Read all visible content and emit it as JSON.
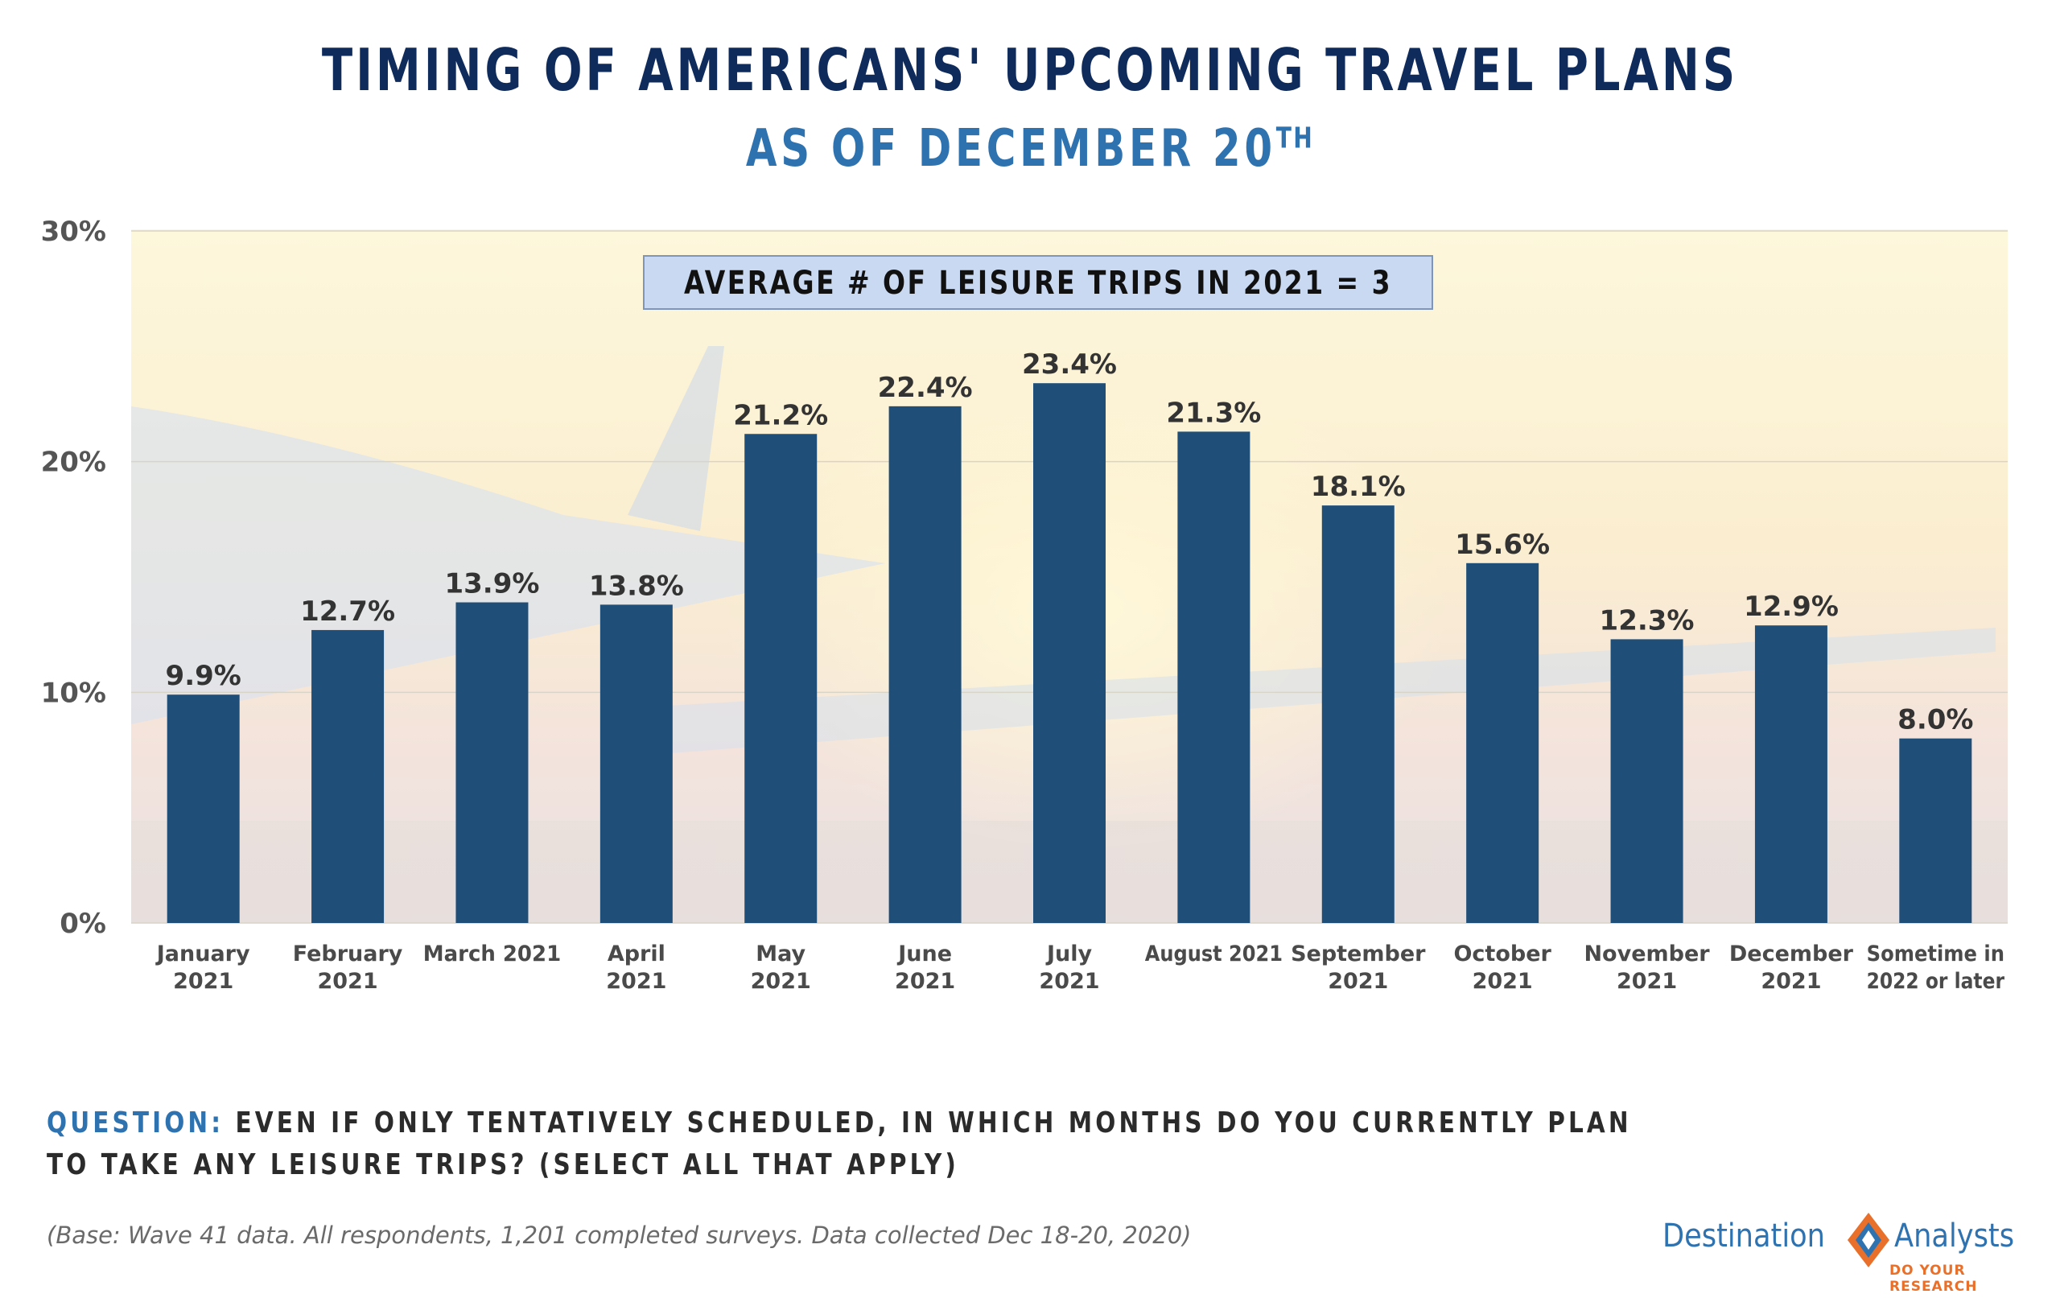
{
  "header": {
    "title": "TIMING OF AMERICANS' UPCOMING TRAVEL PLANS",
    "subtitle_main": "AS OF DECEMBER 20",
    "subtitle_sup": "TH"
  },
  "callout": {
    "text": "AVERAGE # OF LEISURE TRIPS IN 2021 = 3"
  },
  "question": {
    "label": "QUESTION:",
    "text": "EVEN IF ONLY TENTATIVELY SCHEDULED, IN WHICH MONTHS DO YOU CURRENTLY PLAN TO TAKE ANY LEISURE TRIPS? (SELECT ALL THAT APPLY)"
  },
  "base_note": "(Base: Wave 41 data. All respondents, 1,201 completed surveys. Data collected Dec 18-20, 2020)",
  "logo": {
    "word1": "Destination",
    "word2": "Analysts",
    "tagline": "DO YOUR RESEARCH"
  },
  "colors": {
    "bar": "#1f4e79",
    "title": "#0f2b5c",
    "accent": "#2f72b0",
    "logo_orange": "#e8702a"
  },
  "chart_data": {
    "type": "bar",
    "categories": [
      [
        "January",
        "2021"
      ],
      [
        "February",
        "2021"
      ],
      [
        "March 2021"
      ],
      [
        "April",
        "2021"
      ],
      [
        "May",
        "2021"
      ],
      [
        "June",
        "2021"
      ],
      [
        "July",
        "2021"
      ],
      [
        "August 2021"
      ],
      [
        "September",
        "2021"
      ],
      [
        "October",
        "2021"
      ],
      [
        "November",
        "2021"
      ],
      [
        "December",
        "2021"
      ],
      [
        "Sometime in",
        "2022 or later"
      ]
    ],
    "values": [
      9.9,
      12.7,
      13.9,
      13.8,
      21.2,
      22.4,
      23.4,
      21.3,
      18.1,
      15.6,
      12.3,
      12.9,
      8.0
    ],
    "value_labels": [
      "9.9%",
      "12.7%",
      "13.9%",
      "13.8%",
      "21.2%",
      "22.4%",
      "23.4%",
      "21.3%",
      "18.1%",
      "15.6%",
      "12.3%",
      "12.9%",
      "8.0%"
    ],
    "ylim": [
      0,
      30
    ],
    "yticks": [
      0,
      10,
      20,
      30
    ],
    "ytick_labels": [
      "0%",
      "10%",
      "20%",
      "30%"
    ],
    "grid": true
  }
}
